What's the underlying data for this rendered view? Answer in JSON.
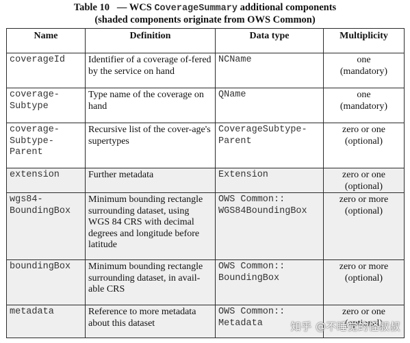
{
  "caption": {
    "line1_prefix": "Table 10",
    "line1_dash": "— WCS",
    "line1_code": "CoverageSummary",
    "line1_suffix": "additional components",
    "line2": "(shaded components originate from OWS Common)"
  },
  "table": {
    "headers": [
      "Name",
      "Definition",
      "Data type",
      "Multiplicity"
    ],
    "rows": [
      {
        "name": "coverageId",
        "definition": "Identifier of a coverage of-fered by the service on hand",
        "datatype": "NCName",
        "mult1": "one",
        "mult2": "(mandatory)"
      },
      {
        "name": "coverage-Subtype",
        "definition": "Type name of the coverage on hand",
        "datatype": "QName",
        "mult1": "one",
        "mult2": "(mandatory)"
      },
      {
        "name": "coverage-Subtype-Parent",
        "definition": "Recursive list of the cover-age's supertypes",
        "datatype": "CoverageSubtype-Parent",
        "mult1": "zero or one",
        "mult2": "(optional)"
      },
      {
        "name": "extension",
        "definition": "Further metadata",
        "datatype": "Extension",
        "mult1": "zero or one",
        "mult2": "(optional)"
      },
      {
        "name": "wgs84-BoundingBox",
        "definition": "Minimum bounding rectangle surrounding dataset, using WGS 84 CRS with decimal degrees and longitude before latitude",
        "datatype": "OWS Common:: WGS84BoundingBox",
        "mult1": "zero or more",
        "mult2": "(optional)"
      },
      {
        "name": "boundingBox",
        "definition": "Minimum bounding rectangle surrounding dataset, in avail-able CRS",
        "datatype": "OWS Common:: BoundingBox",
        "mult1": "zero or more",
        "mult2": "(optional)"
      },
      {
        "name": "metadata",
        "definition": "Reference to more metadata about this dataset",
        "datatype": "OWS Common:: Metadata",
        "mult1": "zero or one",
        "mult2": "(optional)"
      }
    ]
  },
  "watermark": "知乎 @不睡觉的怪叔叔"
}
